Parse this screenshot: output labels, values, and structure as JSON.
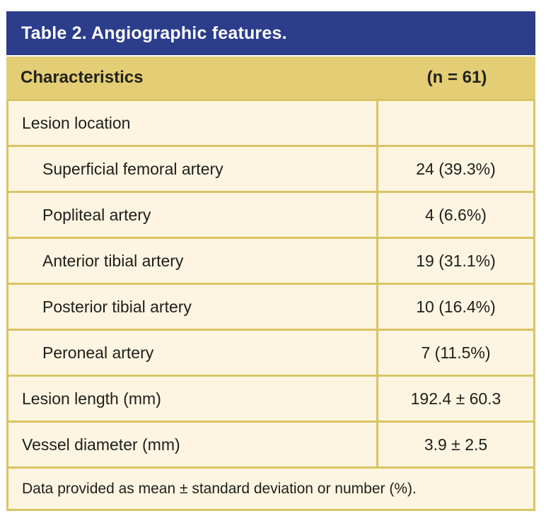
{
  "table": {
    "title": "Table 2. Angiographic features.",
    "columns": {
      "characteristics": "Characteristics",
      "n": "(n = 61)"
    },
    "rows": [
      {
        "label": "Lesion location",
        "value": "",
        "indent": false
      },
      {
        "label": "Superficial femoral artery",
        "value": "24 (39.3%)",
        "indent": true
      },
      {
        "label": "Popliteal artery",
        "value": "4 (6.6%)",
        "indent": true
      },
      {
        "label": "Anterior tibial artery",
        "value": "19 (31.1%)",
        "indent": true
      },
      {
        "label": "Posterior tibial artery",
        "value": "10 (16.4%)",
        "indent": true
      },
      {
        "label": "Peroneal artery",
        "value": "7 (11.5%)",
        "indent": true
      },
      {
        "label": "Lesion length (mm)",
        "value": "192.4 ± 60.3",
        "indent": false
      },
      {
        "label": "Vessel diameter (mm)",
        "value": "3.9 ± 2.5",
        "indent": false
      }
    ],
    "footnote": "Data provided as mean ± standard deviation or number (%)."
  },
  "colors": {
    "header_blue": "#2b3d8b",
    "subheader_tan": "#e3ce75",
    "row_cream": "#fdf5e1",
    "border_gold": "#d9c464",
    "text_dark": "#1e1e1c",
    "title_white": "#ffffff"
  }
}
